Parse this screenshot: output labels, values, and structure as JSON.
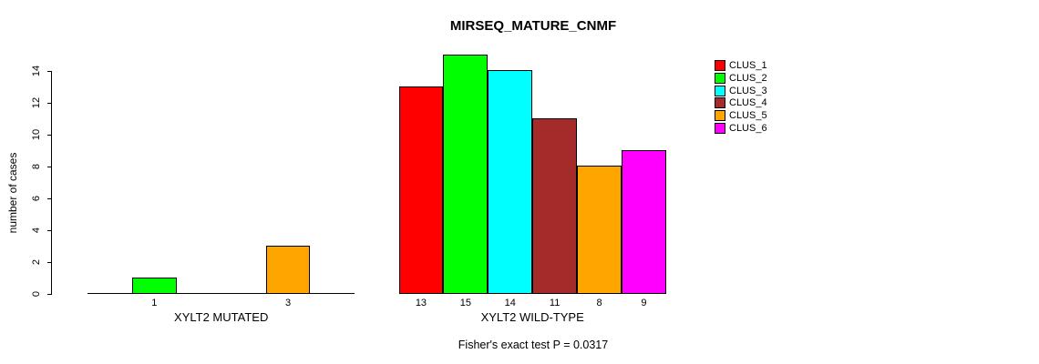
{
  "chart_data": {
    "type": "bar",
    "title": "MIRSEQ_MATURE_CNMF",
    "ylabel": "number of cases",
    "xlabel": "",
    "ylim": [
      0,
      15
    ],
    "yticks": [
      0,
      2,
      4,
      6,
      8,
      10,
      12,
      14
    ],
    "grid": false,
    "legend": {
      "position": "top-right",
      "entries": [
        {
          "label": "CLUS_1",
          "color": "#FF0000"
        },
        {
          "label": "CLUS_2",
          "color": "#00FF00"
        },
        {
          "label": "CLUS_3",
          "color": "#00FFFF"
        },
        {
          "label": "CLUS_4",
          "color": "#A52A2A"
        },
        {
          "label": "CLUS_5",
          "color": "#FFA500"
        },
        {
          "label": "CLUS_6",
          "color": "#FF00FF"
        }
      ]
    },
    "groups": [
      {
        "label": "XYLT2 MUTATED",
        "values": [
          0,
          1,
          0,
          0,
          3,
          0
        ],
        "bar_labels": [
          "",
          "1",
          "",
          "",
          "3",
          ""
        ]
      },
      {
        "label": "XYLT2 WILD-TYPE",
        "values": [
          13,
          15,
          14,
          11,
          8,
          9
        ],
        "bar_labels": [
          "13",
          "15",
          "14",
          "11",
          "8",
          "9"
        ]
      }
    ],
    "footnote": "Fisher's exact test P = 0.0317"
  }
}
